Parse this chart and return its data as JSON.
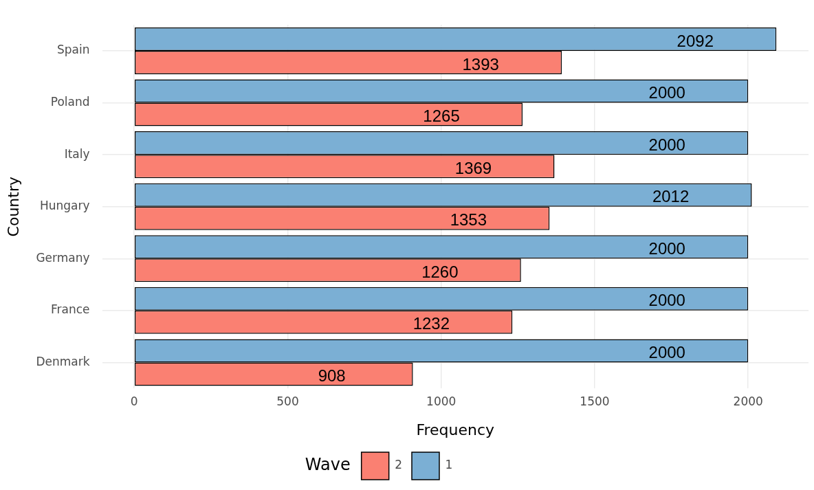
{
  "chart_data": {
    "type": "bar",
    "orientation": "horizontal",
    "xlabel": "Frequency",
    "ylabel": "Country",
    "legend_title": "Wave",
    "legend": "bottom",
    "grid": true,
    "data_labels": true,
    "categories": [
      "Spain",
      "Poland",
      "Italy",
      "Hungary",
      "Germany",
      "France",
      "Denmark"
    ],
    "series": [
      {
        "name": "2",
        "color": "#fa8072",
        "values": [
          1393,
          1265,
          1369,
          1353,
          1260,
          1232,
          908
        ]
      },
      {
        "name": "1",
        "color": "#7bafd4",
        "values": [
          2092,
          2000,
          2000,
          2012,
          2000,
          2000,
          2000
        ]
      }
    ],
    "xlim": [
      -104.6,
      2196.6
    ],
    "xticks": [
      0,
      500,
      1000,
      1500,
      2000
    ]
  }
}
